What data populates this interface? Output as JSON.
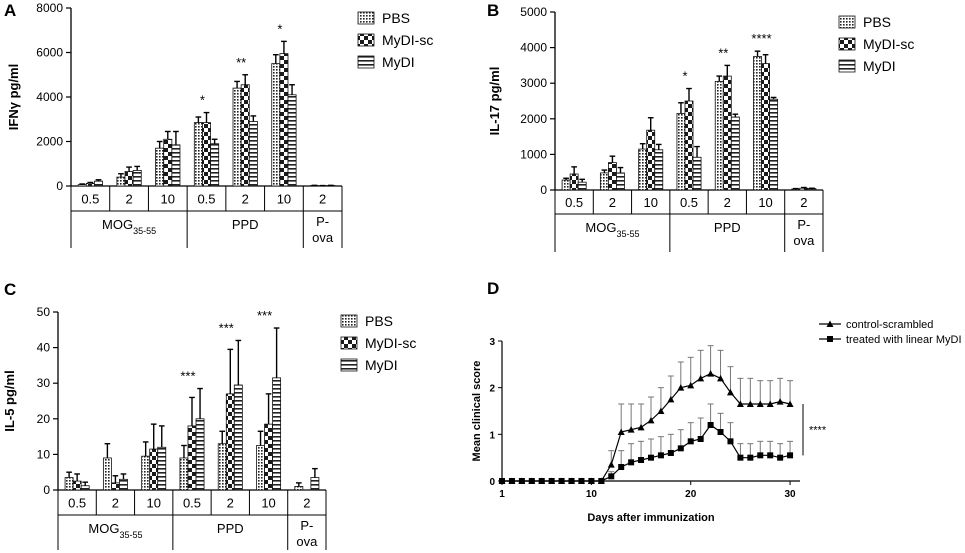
{
  "chart_data": [
    {
      "panel": "A",
      "type": "bar",
      "ylabel": "IFNγ pg/ml",
      "ylim": [
        0,
        8000
      ],
      "yticks": [
        0,
        2000,
        4000,
        6000,
        8000
      ],
      "series_names": [
        "PBS",
        "MyDI-sc",
        "MyDI"
      ],
      "dose_labels": [
        "0.5",
        "2",
        "10",
        "0.5",
        "2",
        "10",
        "2"
      ],
      "groups": [
        {
          "label": "MOG",
          "sub": "35-55",
          "sub2": "",
          "span": [
            0,
            3
          ]
        },
        {
          "label": "PPD",
          "sub": "",
          "sub2": "",
          "span": [
            3,
            6
          ]
        },
        {
          "label": "P-",
          "sub": "",
          "sub2": "ova",
          "span": [
            6,
            7
          ]
        }
      ],
      "values": [
        [
          60,
          120,
          220
        ],
        [
          400,
          650,
          700
        ],
        [
          1700,
          2100,
          1850
        ],
        [
          2850,
          2850,
          1900
        ],
        [
          4400,
          4550,
          2900
        ],
        [
          5500,
          5950,
          4100
        ],
        [
          20,
          10,
          20
        ]
      ],
      "errors": [
        [
          30,
          40,
          60
        ],
        [
          150,
          200,
          180
        ],
        [
          300,
          350,
          600
        ],
        [
          250,
          450,
          200
        ],
        [
          300,
          450,
          250
        ],
        [
          400,
          550,
          450
        ],
        [
          10,
          10,
          10
        ]
      ],
      "significance": [
        {
          "group": 3,
          "text": "*"
        },
        {
          "group": 4,
          "text": "**"
        },
        {
          "group": 5,
          "text": "*"
        }
      ]
    },
    {
      "panel": "B",
      "type": "bar",
      "ylabel": "IL-17 pg/ml",
      "ylim": [
        0,
        5000
      ],
      "yticks": [
        0,
        1000,
        2000,
        3000,
        4000,
        5000
      ],
      "series_names": [
        "PBS",
        "MyDI-sc",
        "MyDI"
      ],
      "dose_labels": [
        "0.5",
        "2",
        "10",
        "0.5",
        "2",
        "10",
        "2"
      ],
      "groups": [
        {
          "label": "MOG",
          "sub": "35-55",
          "sub2": "",
          "span": [
            0,
            3
          ]
        },
        {
          "label": "PPD",
          "sub": "",
          "sub2": "",
          "span": [
            3,
            6
          ]
        },
        {
          "label": "P-",
          "sub": "",
          "sub2": "ova",
          "span": [
            6,
            7
          ]
        }
      ],
      "values": [
        [
          280,
          450,
          220
        ],
        [
          480,
          770,
          480
        ],
        [
          1150,
          1680,
          1130
        ],
        [
          2150,
          2500,
          920
        ],
        [
          3050,
          3200,
          2050
        ],
        [
          3750,
          3550,
          2550
        ],
        [
          30,
          50,
          40
        ]
      ],
      "errors": [
        [
          50,
          200,
          80
        ],
        [
          80,
          180,
          150
        ],
        [
          150,
          350,
          150
        ],
        [
          300,
          350,
          300
        ],
        [
          150,
          300,
          80
        ],
        [
          150,
          250,
          50
        ],
        [
          10,
          20,
          10
        ]
      ],
      "significance": [
        {
          "group": 3,
          "text": "*"
        },
        {
          "group": 4,
          "text": "**"
        },
        {
          "group": 5,
          "text": "****"
        }
      ]
    },
    {
      "panel": "C",
      "type": "bar",
      "ylabel": "IL-5 pg/ml",
      "ylim": [
        0,
        50
      ],
      "yticks": [
        0,
        10,
        20,
        30,
        40,
        50
      ],
      "series_names": [
        "PBS",
        "MyDI-sc",
        "MyDI"
      ],
      "dose_labels": [
        "0.5",
        "2",
        "10",
        "0.5",
        "2",
        "10",
        "2"
      ],
      "groups": [
        {
          "label": "MOG",
          "sub": "35-55",
          "sub2": "",
          "span": [
            0,
            3
          ]
        },
        {
          "label": "PPD",
          "sub": "",
          "sub2": "",
          "span": [
            3,
            6
          ]
        },
        {
          "label": "P-",
          "sub": "",
          "sub2": "ova",
          "span": [
            6,
            7
          ]
        }
      ],
      "values": [
        [
          3.5,
          2.5,
          1.2
        ],
        [
          9,
          2,
          3
        ],
        [
          9.5,
          11.5,
          12
        ],
        [
          9,
          18,
          20
        ],
        [
          13,
          27,
          29.5
        ],
        [
          12.5,
          18.5,
          31.5
        ],
        [
          1,
          0,
          3.5
        ]
      ],
      "errors": [
        [
          1.5,
          2,
          1
        ],
        [
          4,
          2,
          1.5
        ],
        [
          4,
          7,
          6
        ],
        [
          3.5,
          8,
          8.5
        ],
        [
          3.5,
          12.5,
          12.5
        ],
        [
          4,
          8.5,
          14
        ],
        [
          1,
          0,
          2.5
        ]
      ],
      "significance": [
        {
          "group": 3,
          "text": "***"
        },
        {
          "group": 4,
          "text": "***"
        },
        {
          "group": 5,
          "text": "***"
        }
      ]
    },
    {
      "panel": "D",
      "type": "line",
      "xlabel": "Days after immunization",
      "ylabel": "Mean clinical score",
      "xlim": [
        1,
        31
      ],
      "ylim": [
        0,
        3
      ],
      "xticks": [
        1,
        10,
        20,
        30
      ],
      "yticks": [
        0,
        1,
        2,
        3
      ],
      "x": [
        1,
        2,
        3,
        4,
        5,
        6,
        7,
        8,
        9,
        10,
        11,
        12,
        13,
        14,
        15,
        16,
        17,
        18,
        19,
        20,
        21,
        22,
        23,
        24,
        25,
        26,
        27,
        28,
        29,
        30
      ],
      "series": [
        {
          "name": "control-scrambled",
          "marker": "triangle",
          "values": [
            0,
            0,
            0,
            0,
            0,
            0,
            0,
            0,
            0,
            0,
            0,
            0.35,
            1.05,
            1.1,
            1.15,
            1.3,
            1.5,
            1.75,
            2.0,
            2.05,
            2.2,
            2.3,
            2.2,
            1.9,
            1.65,
            1.65,
            1.65,
            1.65,
            1.7,
            1.65
          ],
          "errors": [
            0,
            0,
            0,
            0,
            0,
            0,
            0,
            0,
            0,
            0,
            0,
            0.3,
            0.6,
            0.55,
            0.5,
            0.5,
            0.5,
            0.5,
            0.55,
            0.6,
            0.6,
            0.6,
            0.6,
            0.55,
            0.55,
            0.55,
            0.5,
            0.5,
            0.5,
            0.5
          ]
        },
        {
          "name": "treated with linear MyDI",
          "marker": "square",
          "values": [
            0,
            0,
            0,
            0,
            0,
            0,
            0,
            0,
            0,
            0,
            0,
            0.1,
            0.3,
            0.4,
            0.45,
            0.5,
            0.55,
            0.6,
            0.7,
            0.85,
            0.9,
            1.2,
            1.05,
            0.85,
            0.5,
            0.5,
            0.55,
            0.55,
            0.5,
            0.55
          ],
          "errors": [
            0,
            0,
            0,
            0,
            0,
            0,
            0,
            0,
            0,
            0,
            0,
            0.1,
            0.35,
            0.4,
            0.4,
            0.4,
            0.4,
            0.4,
            0.4,
            0.4,
            0.45,
            0.45,
            0.4,
            0.4,
            0.3,
            0.3,
            0.3,
            0.3,
            0.3,
            0.3
          ]
        }
      ],
      "significance": "****"
    }
  ]
}
